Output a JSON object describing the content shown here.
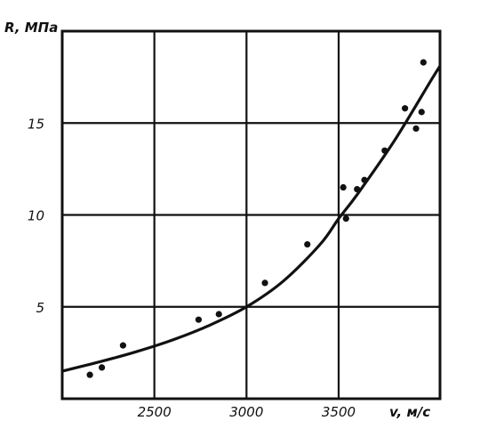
{
  "chart_data": {
    "type": "scatter",
    "title": "",
    "xlabel": "v, м/с",
    "ylabel": "R, МПа",
    "xlim": [
      2000,
      4050
    ],
    "ylim": [
      0,
      20
    ],
    "grid": true,
    "x_ticks": [
      2500,
      3000,
      3500
    ],
    "y_ticks": [
      5,
      10,
      15
    ],
    "x_tick_labels": [
      "2500",
      "3000",
      "3500"
    ],
    "y_tick_labels": [
      "5",
      "10",
      "15"
    ],
    "points": [
      {
        "x": 2150,
        "y": 1.3
      },
      {
        "x": 2215,
        "y": 1.7
      },
      {
        "x": 2330,
        "y": 2.9
      },
      {
        "x": 2740,
        "y": 4.3
      },
      {
        "x": 2850,
        "y": 4.6
      },
      {
        "x": 3100,
        "y": 6.3
      },
      {
        "x": 3330,
        "y": 8.4
      },
      {
        "x": 3525,
        "y": 11.5
      },
      {
        "x": 3540,
        "y": 9.8
      },
      {
        "x": 3600,
        "y": 11.4
      },
      {
        "x": 3640,
        "y": 11.9
      },
      {
        "x": 3750,
        "y": 13.5
      },
      {
        "x": 3860,
        "y": 15.8
      },
      {
        "x": 3920,
        "y": 14.7
      },
      {
        "x": 3950,
        "y": 15.6
      },
      {
        "x": 3960,
        "y": 18.3
      }
    ],
    "trend_curve": {
      "x": [
        2000,
        2200,
        2400,
        2600,
        2800,
        3000,
        3200,
        3400,
        3500,
        3600,
        3800,
        4000,
        4050
      ],
      "y": [
        1.5,
        2.0,
        2.55,
        3.2,
        4.0,
        5.0,
        6.4,
        8.4,
        9.8,
        11.1,
        14.0,
        17.3,
        18.1
      ]
    }
  }
}
